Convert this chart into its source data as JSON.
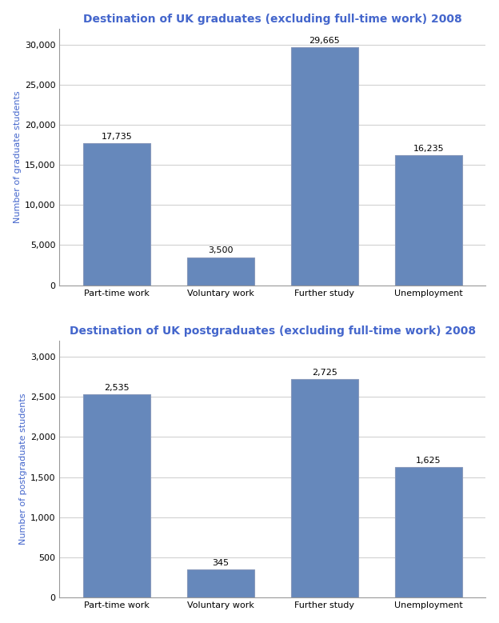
{
  "grad_title": "Destination of UK graduates (excluding full-time work) 2008",
  "postgrad_title": "Destination of UK postgraduates (excluding full-time work) 2008",
  "categories": [
    "Part-time work",
    "Voluntary work",
    "Further study",
    "Unemployment"
  ],
  "grad_values": [
    17735,
    3500,
    29665,
    16235
  ],
  "postgrad_values": [
    2535,
    345,
    2725,
    1625
  ],
  "grad_labels": [
    "17,735",
    "3,500",
    "29,665",
    "16,235"
  ],
  "postgrad_labels": [
    "2,535",
    "345",
    "2,725",
    "1,625"
  ],
  "bar_color": "#6688bb",
  "title_color": "#4466cc",
  "ylabel_color": "#4466cc",
  "ylabel_grad": "Number of graduate students",
  "ylabel_postgrad": "Number of postgraduate students",
  "grad_ylim": [
    0,
    32000
  ],
  "grad_yticks": [
    0,
    5000,
    10000,
    15000,
    20000,
    25000,
    30000
  ],
  "postgrad_ylim": [
    0,
    3200
  ],
  "postgrad_yticks": [
    0,
    500,
    1000,
    1500,
    2000,
    2500,
    3000
  ],
  "title_fontsize": 10,
  "label_fontsize": 8,
  "tick_fontsize": 8,
  "ylabel_fontsize": 8,
  "background_color": "#ffffff",
  "bar_width": 0.65,
  "grid_color": "#cccccc",
  "spine_color": "#999999"
}
